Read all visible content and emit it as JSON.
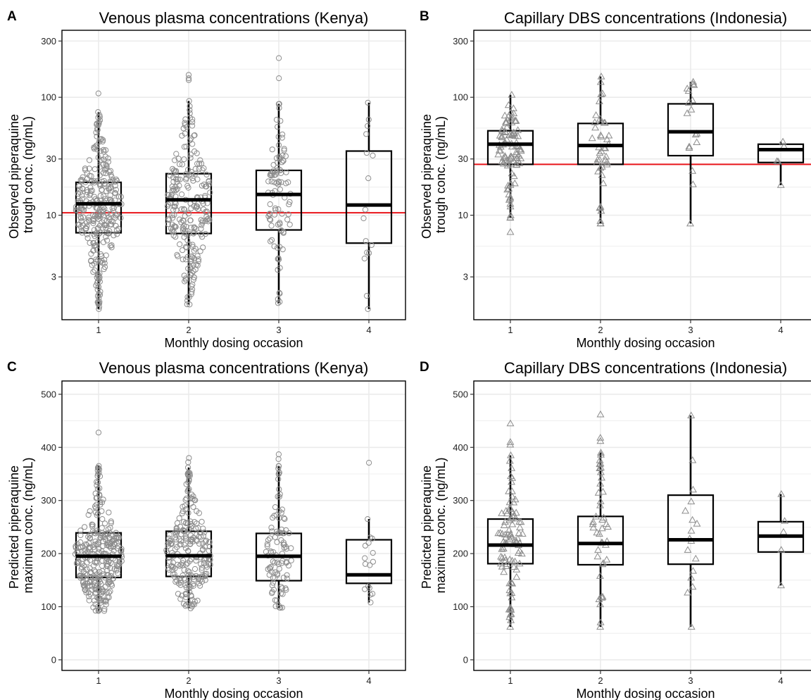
{
  "colors": {
    "refline": "#e8141a",
    "point": "#8c8c8c",
    "grid": "#ebebeb",
    "box": "#000000"
  },
  "chart_data": [
    {
      "panel": "A",
      "type": "box",
      "marker": "circle",
      "title": "Venous plasma concentrations (Kenya)",
      "xlabel": "Monthly dosing occasion",
      "ylabel_lines": [
        "Observed piperaquine",
        "trough conc. (ng/mL)"
      ],
      "yscale": "log",
      "ylim": [
        1.3,
        370
      ],
      "yticks": [
        3,
        10,
        30,
        100,
        300
      ],
      "ytick_labels": [
        "3",
        "10",
        "30",
        "100",
        "300"
      ],
      "categories": [
        "1",
        "2",
        "3",
        "4"
      ],
      "refline": 10.5,
      "boxes": [
        {
          "q1": 7.1,
          "median": 12.5,
          "q3": 19.0,
          "lo": 1.6,
          "hi": 75
        },
        {
          "q1": 7.0,
          "median": 13.5,
          "q3": 22.5,
          "lo": 1.75,
          "hi": 93
        },
        {
          "q1": 7.5,
          "median": 15.0,
          "q3": 24.0,
          "lo": 1.8,
          "hi": 88
        },
        {
          "q1": 5.8,
          "median": 12.2,
          "q3": 35.0,
          "lo": 1.6,
          "hi": 90
        }
      ],
      "n_points": [
        300,
        230,
        95,
        14
      ],
      "outliers": [
        [
          108
        ],
        [
          155,
          145,
          140
        ],
        [
          215,
          145
        ],
        []
      ]
    },
    {
      "panel": "B",
      "type": "box",
      "marker": "triangle",
      "title": "Capillary DBS concentrations (Indonesia)",
      "xlabel": "Monthly dosing occasion",
      "ylabel_lines": [
        "Observed piperaquine",
        "trough conc. (ng/mL)"
      ],
      "yscale": "log",
      "ylim": [
        1.3,
        370
      ],
      "yticks": [
        3,
        10,
        30,
        100,
        300
      ],
      "ytick_labels": [
        "3",
        "10",
        "30",
        "100",
        "300"
      ],
      "categories": [
        "1",
        "2",
        "3",
        "4"
      ],
      "refline": 27,
      "boxes": [
        {
          "q1": 27,
          "median": 40,
          "q3": 52,
          "lo": 9.5,
          "hi": 105
        },
        {
          "q1": 27,
          "median": 39,
          "q3": 60,
          "lo": 8.5,
          "hi": 150
        },
        {
          "q1": 32,
          "median": 51,
          "q3": 88,
          "lo": 8.5,
          "hi": 135
        },
        {
          "q1": 28,
          "median": 36,
          "q3": 40,
          "lo": 18,
          "hi": 42
        }
      ],
      "n_points": [
        90,
        40,
        15,
        3
      ],
      "outliers": [
        [
          7.2
        ],
        [],
        [],
        []
      ]
    },
    {
      "panel": "C",
      "type": "box",
      "marker": "circle",
      "title": "Venous plasma concentrations (Kenya)",
      "xlabel": "Monthly dosing occasion",
      "ylabel_lines": [
        "Predicted piperaquine",
        "maximum conc. (ng/mL)"
      ],
      "yscale": "linear",
      "ylim": [
        -20,
        525
      ],
      "yticks": [
        0,
        100,
        200,
        300,
        400,
        500
      ],
      "ytick_labels": [
        "0",
        "100",
        "200",
        "300",
        "400",
        "500"
      ],
      "categories": [
        "1",
        "2",
        "3",
        "4"
      ],
      "refline": null,
      "boxes": [
        {
          "q1": 155,
          "median": 195,
          "q3": 239,
          "lo": 92,
          "hi": 365
        },
        {
          "q1": 157,
          "median": 196,
          "q3": 242,
          "lo": 97,
          "hi": 362
        },
        {
          "q1": 149,
          "median": 195,
          "q3": 238,
          "lo": 98,
          "hi": 365
        },
        {
          "q1": 144,
          "median": 160,
          "q3": 226,
          "lo": 108,
          "hi": 265
        }
      ],
      "n_points": [
        300,
        230,
        95,
        14
      ],
      "outliers": [
        [
          428
        ],
        [
          380,
          372
        ],
        [
          387,
          378
        ],
        [
          371
        ]
      ]
    },
    {
      "panel": "D",
      "type": "box",
      "marker": "triangle",
      "title": "Capillary DBS concentrations (Indonesia)",
      "xlabel": "Monthly dosing occasion",
      "ylabel_lines": [
        "Predicted piperaquine",
        "maximum conc. (ng/mL)"
      ],
      "yscale": "linear",
      "ylim": [
        -20,
        525
      ],
      "yticks": [
        0,
        100,
        200,
        300,
        400,
        500
      ],
      "ytick_labels": [
        "0",
        "100",
        "200",
        "300",
        "400",
        "500"
      ],
      "categories": [
        "1",
        "2",
        "3",
        "4"
      ],
      "refline": null,
      "boxes": [
        {
          "q1": 181,
          "median": 216,
          "q3": 265,
          "lo": 62,
          "hi": 385
        },
        {
          "q1": 179,
          "median": 219,
          "q3": 270,
          "lo": 62,
          "hi": 390
        },
        {
          "q1": 180,
          "median": 226,
          "q3": 310,
          "lo": 62,
          "hi": 460
        },
        {
          "q1": 203,
          "median": 233,
          "q3": 260,
          "lo": 140,
          "hi": 312
        }
      ],
      "n_points": [
        90,
        40,
        15,
        3
      ],
      "outliers": [
        [
          445,
          410,
          405
        ],
        [
          462,
          418,
          412
        ],
        [],
        []
      ]
    }
  ]
}
